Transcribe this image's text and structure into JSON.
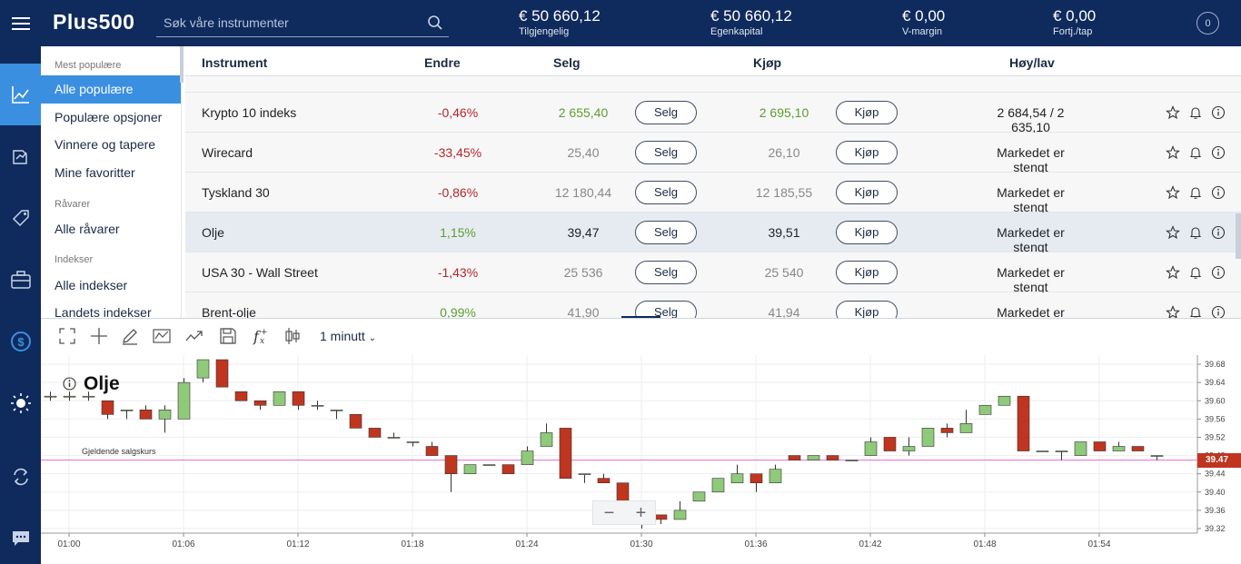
{
  "header": {
    "logo": "Plus500",
    "search_placeholder": "Søk våre instrumenter",
    "stats": [
      {
        "value": "€ 50 660,12",
        "label": "Tilgjengelig"
      },
      {
        "value": "€ 50 660,12",
        "label": "Egenkapital"
      },
      {
        "value": "€ 0,00",
        "label": "V-margin"
      },
      {
        "value": "€ 0,00",
        "label": "Fortj./tap"
      }
    ],
    "user_badge": "0"
  },
  "rail": {
    "icons": [
      "menu-icon",
      "chart-line-icon",
      "trade-arrows-icon",
      "tag-icon",
      "briefcase-icon",
      "dollar-circle-icon",
      "sun-icon",
      "swap-icon",
      "chat-icon"
    ]
  },
  "categories": {
    "sections": [
      {
        "heading": "Mest populære",
        "items": [
          "Alle populære",
          "Populære opsjoner",
          "Vinnere og tapere",
          "Mine favoritter"
        ]
      },
      {
        "heading": "Råvarer",
        "items": [
          "Alle råvarer"
        ]
      },
      {
        "heading": "Indekser",
        "items": [
          "Alle indekser",
          "Landets indekser"
        ]
      }
    ],
    "selected": "Alle populære"
  },
  "table": {
    "columns": [
      "Instrument",
      "Endre",
      "Selg",
      "Kjøp",
      "Høy/lav"
    ],
    "sell_button": "Selg",
    "buy_button": "Kjøp",
    "rows": [
      {
        "name": "Krypto 10 indeks",
        "change": "-0,46%",
        "sell": "2 655,40",
        "buy": "2 695,10",
        "highlow": "2 684,54 / 2 635,10",
        "dir": "neg",
        "price_color": "pos"
      },
      {
        "name": "Wirecard",
        "change": "-33,45%",
        "sell": "25,40",
        "buy": "26,10",
        "highlow": "Markedet er stengt",
        "dir": "neg",
        "price_color": "grey"
      },
      {
        "name": "Tyskland 30",
        "change": "-0,86%",
        "sell": "12 180,44",
        "buy": "12 185,55",
        "highlow": "Markedet er stengt",
        "dir": "neg",
        "price_color": "grey"
      },
      {
        "name": "Olje",
        "change": "1,15%",
        "sell": "39,47",
        "buy": "39,51",
        "highlow": "Markedet er stengt",
        "dir": "pos",
        "price_color": "dark"
      },
      {
        "name": "USA 30 - Wall Street",
        "change": "-1,43%",
        "sell": "25 536",
        "buy": "25 540",
        "highlow": "Markedet er stengt",
        "dir": "neg",
        "price_color": "grey"
      },
      {
        "name": "Brent-olje",
        "change": "0,99%",
        "sell": "41,90",
        "buy": "41,94",
        "highlow": "Markedet er stengt",
        "dir": "pos",
        "price_color": "grey"
      }
    ]
  },
  "chart_toolbar": {
    "interval": "1 minutt"
  },
  "chart_data": {
    "type": "candlestick",
    "title": "Olje",
    "current_price_label": "Gjeldende salgskurs",
    "current_price": 39.47,
    "current_price_display": "39.47",
    "y_ticks": [
      "39.68",
      "39.64",
      "39.60",
      "39.56",
      "39.52",
      "39.48",
      "39.44",
      "39.40",
      "39.36",
      "39.32"
    ],
    "ylim": [
      39.31,
      39.7
    ],
    "x_ticks": [
      "01:00",
      "01:06",
      "01:12",
      "01:18",
      "01:24",
      "01:30",
      "01:36",
      "01:42",
      "01:48",
      "01:54"
    ],
    "candles": [
      {
        "o": 39.61,
        "c": 39.61,
        "h": 39.62,
        "l": 39.6
      },
      {
        "o": 39.61,
        "c": 39.61,
        "h": 39.62,
        "l": 39.6
      },
      {
        "o": 39.61,
        "c": 39.61,
        "h": 39.62,
        "l": 39.6
      },
      {
        "o": 39.6,
        "c": 39.57,
        "h": 39.6,
        "l": 39.56
      },
      {
        "o": 39.58,
        "c": 39.58,
        "h": 39.58,
        "l": 39.56
      },
      {
        "o": 39.58,
        "c": 39.56,
        "h": 39.59,
        "l": 39.56
      },
      {
        "o": 39.56,
        "c": 39.58,
        "h": 39.59,
        "l": 39.53
      },
      {
        "o": 39.56,
        "c": 39.64,
        "h": 39.65,
        "l": 39.56
      },
      {
        "o": 39.65,
        "c": 39.69,
        "h": 39.69,
        "l": 39.64
      },
      {
        "o": 39.69,
        "c": 39.63,
        "h": 39.69,
        "l": 39.63
      },
      {
        "o": 39.62,
        "c": 39.6,
        "h": 39.62,
        "l": 39.6
      },
      {
        "o": 39.6,
        "c": 39.59,
        "h": 39.6,
        "l": 39.58
      },
      {
        "o": 39.59,
        "c": 39.62,
        "h": 39.62,
        "l": 39.59
      },
      {
        "o": 39.62,
        "c": 39.59,
        "h": 39.62,
        "l": 39.58
      },
      {
        "o": 39.59,
        "c": 39.59,
        "h": 39.6,
        "l": 39.58
      },
      {
        "o": 39.58,
        "c": 39.58,
        "h": 39.58,
        "l": 39.56
      },
      {
        "o": 39.57,
        "c": 39.54,
        "h": 39.57,
        "l": 39.54
      },
      {
        "o": 39.54,
        "c": 39.52,
        "h": 39.54,
        "l": 39.52
      },
      {
        "o": 39.52,
        "c": 39.52,
        "h": 39.53,
        "l": 39.52
      },
      {
        "o": 39.51,
        "c": 39.51,
        "h": 39.51,
        "l": 39.5
      },
      {
        "o": 39.5,
        "c": 39.48,
        "h": 39.51,
        "l": 39.48
      },
      {
        "o": 39.48,
        "c": 39.44,
        "h": 39.48,
        "l": 39.4
      },
      {
        "o": 39.44,
        "c": 39.46,
        "h": 39.46,
        "l": 39.44
      },
      {
        "o": 39.46,
        "c": 39.46,
        "h": 39.46,
        "l": 39.46
      },
      {
        "o": 39.46,
        "c": 39.44,
        "h": 39.46,
        "l": 39.44
      },
      {
        "o": 39.46,
        "c": 39.49,
        "h": 39.5,
        "l": 39.46
      },
      {
        "o": 39.5,
        "c": 39.53,
        "h": 39.55,
        "l": 39.5
      },
      {
        "o": 39.54,
        "c": 39.43,
        "h": 39.54,
        "l": 39.43
      },
      {
        "o": 39.44,
        "c": 39.44,
        "h": 39.44,
        "l": 39.42
      },
      {
        "o": 39.43,
        "c": 39.42,
        "h": 39.44,
        "l": 39.42
      },
      {
        "o": 39.42,
        "c": 39.36,
        "h": 39.42,
        "l": 39.34
      },
      {
        "o": 39.37,
        "c": 39.34,
        "h": 39.37,
        "l": 39.32
      },
      {
        "o": 39.35,
        "c": 39.34,
        "h": 39.35,
        "l": 39.33
      },
      {
        "o": 39.34,
        "c": 39.36,
        "h": 39.38,
        "l": 39.34
      },
      {
        "o": 39.38,
        "c": 39.4,
        "h": 39.4,
        "l": 39.38
      },
      {
        "o": 39.4,
        "c": 39.43,
        "h": 39.43,
        "l": 39.4
      },
      {
        "o": 39.42,
        "c": 39.44,
        "h": 39.46,
        "l": 39.42
      },
      {
        "o": 39.44,
        "c": 39.42,
        "h": 39.44,
        "l": 39.4
      },
      {
        "o": 39.42,
        "c": 39.45,
        "h": 39.46,
        "l": 39.42
      },
      {
        "o": 39.48,
        "c": 39.47,
        "h": 39.48,
        "l": 39.47
      },
      {
        "o": 39.47,
        "c": 39.48,
        "h": 39.48,
        "l": 39.47
      },
      {
        "o": 39.48,
        "c": 39.47,
        "h": 39.48,
        "l": 39.47
      },
      {
        "o": 39.47,
        "c": 39.47,
        "h": 39.47,
        "l": 39.47
      },
      {
        "o": 39.48,
        "c": 39.51,
        "h": 39.52,
        "l": 39.48
      },
      {
        "o": 39.52,
        "c": 39.49,
        "h": 39.52,
        "l": 39.49
      },
      {
        "o": 39.49,
        "c": 39.5,
        "h": 39.52,
        "l": 39.48
      },
      {
        "o": 39.5,
        "c": 39.54,
        "h": 39.54,
        "l": 39.5
      },
      {
        "o": 39.54,
        "c": 39.53,
        "h": 39.55,
        "l": 39.52
      },
      {
        "o": 39.53,
        "c": 39.55,
        "h": 39.58,
        "l": 39.53
      },
      {
        "o": 39.57,
        "c": 39.59,
        "h": 39.59,
        "l": 39.57
      },
      {
        "o": 39.59,
        "c": 39.61,
        "h": 39.61,
        "l": 39.59
      },
      {
        "o": 39.61,
        "c": 39.49,
        "h": 39.61,
        "l": 39.49
      },
      {
        "o": 39.49,
        "c": 39.49,
        "h": 39.49,
        "l": 39.49
      },
      {
        "o": 39.49,
        "c": 39.49,
        "h": 39.49,
        "l": 39.47
      },
      {
        "o": 39.48,
        "c": 39.51,
        "h": 39.51,
        "l": 39.48
      },
      {
        "o": 39.51,
        "c": 39.49,
        "h": 39.51,
        "l": 39.49
      },
      {
        "o": 39.49,
        "c": 39.5,
        "h": 39.51,
        "l": 39.49
      },
      {
        "o": 39.5,
        "c": 39.49,
        "h": 39.5,
        "l": 39.49
      },
      {
        "o": 39.48,
        "c": 39.48,
        "h": 39.48,
        "l": 39.47
      }
    ]
  },
  "colors": {
    "navy": "#0f2a5c",
    "accent": "#3b8fe0",
    "up": "#8fc97a",
    "down": "#c0351f",
    "price_line": "#e46bd8"
  }
}
